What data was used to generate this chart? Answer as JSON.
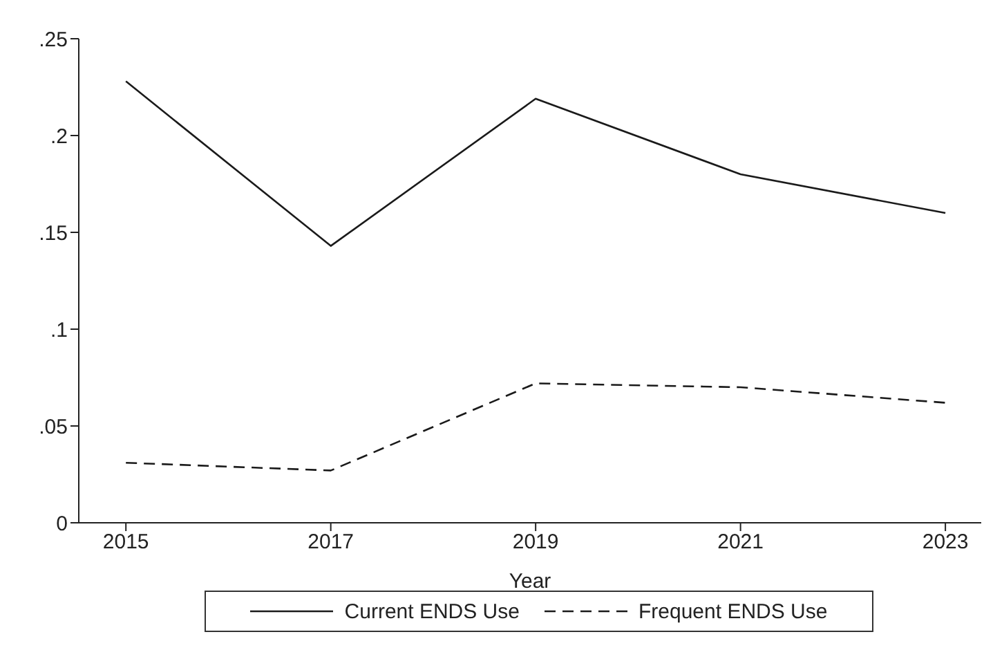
{
  "chart_data": {
    "type": "line",
    "xlabel": "Year",
    "x": [
      2015,
      2017,
      2019,
      2021,
      2023
    ],
    "series": [
      {
        "name": "Current ENDS Use",
        "color": "#1a1a1a",
        "line_style": "solid",
        "values": [
          0.228,
          0.143,
          0.219,
          0.18,
          0.16
        ]
      },
      {
        "name": "Frequent ENDS Use",
        "color": "#1a1a1a",
        "line_style": "dashed",
        "values": [
          0.031,
          0.027,
          0.072,
          0.07,
          0.062
        ]
      }
    ],
    "xlim": [
      2014.54,
      2023.35
    ],
    "xticks": [
      2015,
      2017,
      2019,
      2021,
      2023
    ],
    "ylim": [
      0,
      0.25
    ],
    "yticks": [
      {
        "value": 0,
        "label": "0"
      },
      {
        "value": 0.05,
        "label": ".05"
      },
      {
        "value": 0.1,
        "label": ".1"
      },
      {
        "value": 0.15,
        "label": ".15"
      },
      {
        "value": 0.2,
        "label": ".2"
      },
      {
        "value": 0.25,
        "label": ".25"
      }
    ],
    "grid": false,
    "legend": "bottom",
    "marker": "none"
  }
}
